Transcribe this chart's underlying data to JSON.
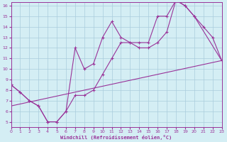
{
  "xlabel": "Windchill (Refroidissement éolien,°C)",
  "bg_color": "#d4eef4",
  "line_color": "#993399",
  "grid_color": "#aaccdd",
  "xlim": [
    0,
    23
  ],
  "ylim": [
    5,
    16
  ],
  "xticks": [
    0,
    1,
    2,
    3,
    4,
    5,
    6,
    7,
    8,
    9,
    10,
    11,
    12,
    13,
    14,
    15,
    16,
    17,
    18,
    19,
    20,
    21,
    22,
    23
  ],
  "yticks": [
    5,
    6,
    7,
    8,
    9,
    10,
    11,
    12,
    13,
    14,
    15,
    16
  ],
  "curve_jagged": {
    "x": [
      0,
      1,
      2,
      3,
      4,
      5,
      6,
      7,
      8,
      9,
      10,
      11,
      12,
      13,
      14,
      15,
      16,
      17,
      18,
      19,
      20,
      23
    ],
    "y": [
      8.5,
      7.8,
      7.0,
      6.5,
      5.0,
      5.0,
      6.0,
      12.0,
      10.0,
      10.5,
      13.0,
      14.5,
      13.0,
      12.5,
      12.0,
      12.0,
      12.5,
      13.5,
      16.5,
      16.0,
      15.0,
      10.8
    ]
  },
  "curve_smooth": {
    "x": [
      0,
      1,
      2,
      3,
      4,
      5,
      6,
      7,
      8,
      9,
      10,
      11,
      12,
      13,
      14,
      15,
      16,
      17,
      18,
      19,
      20,
      21,
      22,
      23
    ],
    "y": [
      8.5,
      7.8,
      7.0,
      6.5,
      5.0,
      5.0,
      6.0,
      7.5,
      7.5,
      8.0,
      9.5,
      11.0,
      12.5,
      12.5,
      12.5,
      12.5,
      15.0,
      15.0,
      16.5,
      16.0,
      15.0,
      14.0,
      13.0,
      10.8
    ]
  },
  "curve_linear": {
    "x": [
      0,
      23
    ],
    "y": [
      6.5,
      10.8
    ]
  }
}
